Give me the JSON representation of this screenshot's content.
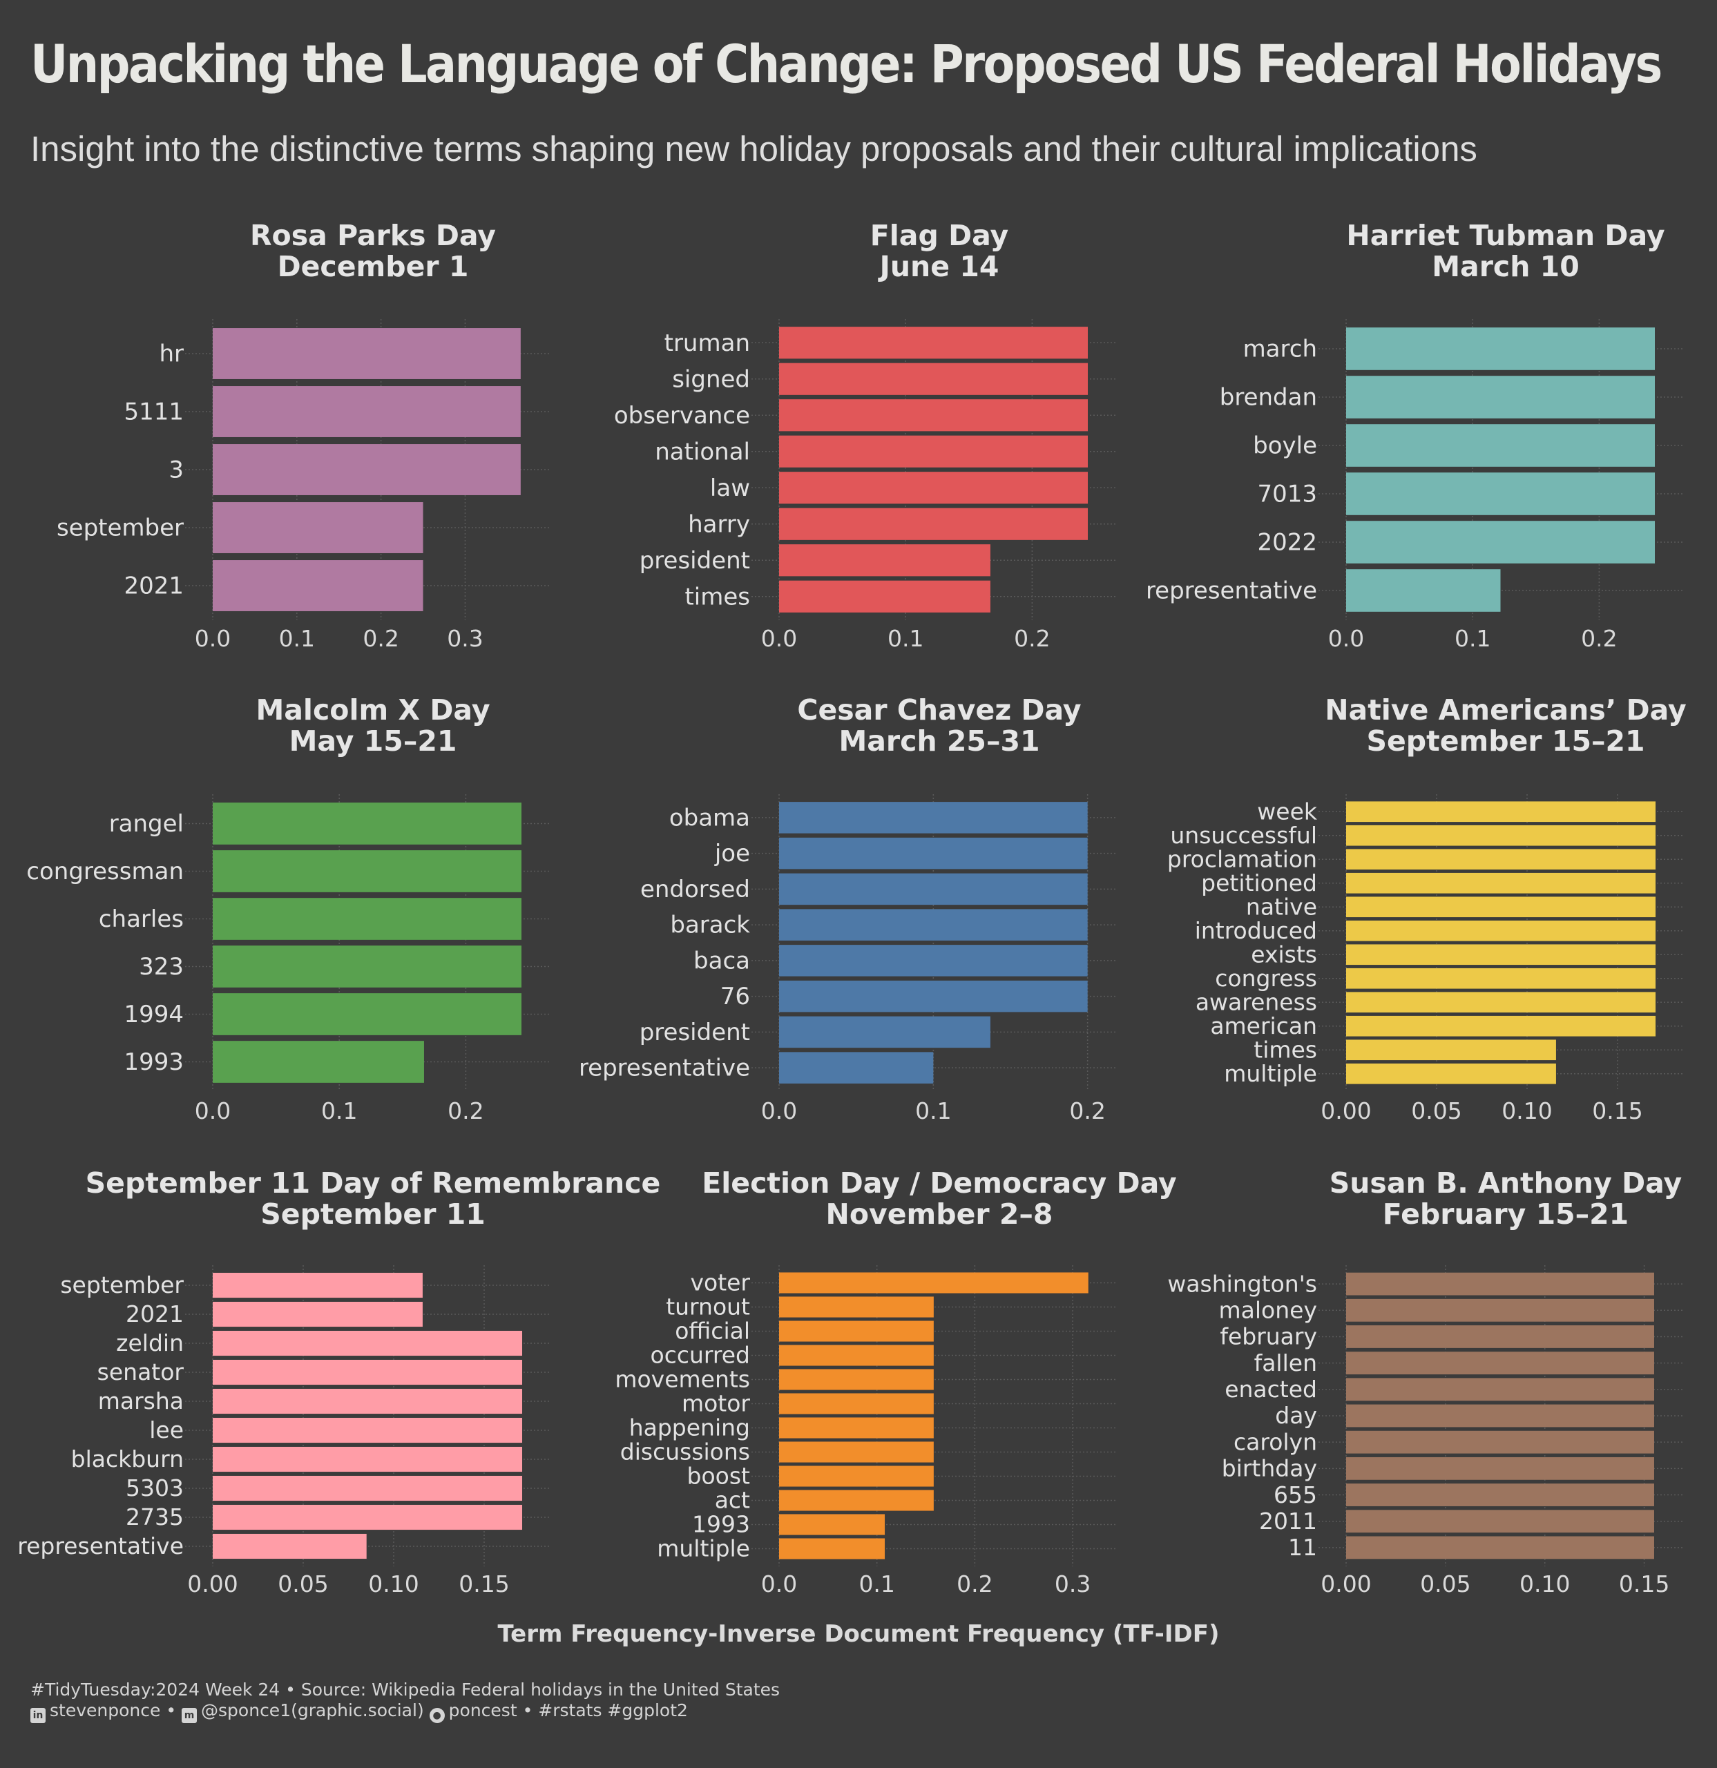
{
  "title": "Unpacking the Language of Change: Proposed US Federal Holidays",
  "subtitle": "Insight into the distinctive terms shaping new holiday proposals and their cultural implications",
  "x_axis_label": "Term Frequency-Inverse Document Frequency (TF-IDF)",
  "caption": {
    "line1": "#TidyTuesday:2024 Week 24 • Source: Wikipedia Federal holidays in the United States",
    "linkedin": "stevenponce",
    "mastodon": "@sponce1(graphic.social)",
    "github": "poncest",
    "tags": "#rstats #ggplot2",
    "sep": "•"
  },
  "icons": [
    "linkedin-icon",
    "mastodon-icon",
    "github-icon"
  ],
  "chart_data": [
    {
      "type": "bar",
      "orientation": "horizontal",
      "title": "Rosa Parks Day",
      "subtitle": "December 1",
      "color": "#b07aa1",
      "categories": [
        "hr",
        "5111",
        "3",
        "september",
        "2021"
      ],
      "values": [
        0.366,
        0.366,
        0.366,
        0.25,
        0.25
      ],
      "xlim": [
        0,
        0.385
      ],
      "xticks": [
        0,
        0.1,
        0.2,
        0.3
      ],
      "xtick_labels": [
        "0.0",
        "0.1",
        "0.2",
        "0.3"
      ]
    },
    {
      "type": "bar",
      "orientation": "horizontal",
      "title": "Flag Day",
      "subtitle": "June 14",
      "color": "#e15759",
      "categories": [
        "truman",
        "signed",
        "observance",
        "national",
        "law",
        "harry",
        "president",
        "times"
      ],
      "values": [
        0.244,
        0.244,
        0.244,
        0.244,
        0.244,
        0.244,
        0.167,
        0.167
      ],
      "xlim": [
        0,
        0.256
      ],
      "xticks": [
        0,
        0.1,
        0.2
      ],
      "xtick_labels": [
        "0.0",
        "0.1",
        "0.2"
      ]
    },
    {
      "type": "bar",
      "orientation": "horizontal",
      "title": "Harriet Tubman Day",
      "subtitle": "March 10",
      "color": "#76b7b2",
      "categories": [
        "march",
        "brendan",
        "boyle",
        "7013",
        "2022",
        "representative"
      ],
      "values": [
        0.244,
        0.244,
        0.244,
        0.244,
        0.244,
        0.122
      ],
      "xlim": [
        0,
        0.256
      ],
      "xticks": [
        0,
        0.1,
        0.2
      ],
      "xtick_labels": [
        "0.0",
        "0.1",
        "0.2"
      ]
    },
    {
      "type": "bar",
      "orientation": "horizontal",
      "title": "Malcolm X Day",
      "subtitle": "May 15–21",
      "color": "#59a14f",
      "categories": [
        "rangel",
        "congressman",
        "charles",
        "323",
        "1994",
        "1993"
      ],
      "values": [
        0.244,
        0.244,
        0.244,
        0.244,
        0.244,
        0.167
      ],
      "xlim": [
        0,
        0.256
      ],
      "xticks": [
        0,
        0.1,
        0.2
      ],
      "xtick_labels": [
        "0.0",
        "0.1",
        "0.2"
      ]
    },
    {
      "type": "bar",
      "orientation": "horizontal",
      "title": "Cesar Chavez Day",
      "subtitle": "March 25–31",
      "color": "#4e79a7",
      "categories": [
        "obama",
        "joe",
        "endorsed",
        "barack",
        "baca",
        "76",
        "president",
        "representative"
      ],
      "values": [
        0.2,
        0.2,
        0.2,
        0.2,
        0.2,
        0.2,
        0.137,
        0.1
      ],
      "xlim": [
        0,
        0.21
      ],
      "xticks": [
        0,
        0.1,
        0.2
      ],
      "xtick_labels": [
        "0.0",
        "0.1",
        "0.2"
      ]
    },
    {
      "type": "bar",
      "orientation": "horizontal",
      "title": "Native Americans’ Day",
      "subtitle": "September 15–21",
      "color": "#edc948",
      "categories": [
        "week",
        "unsuccessful",
        "proclamation",
        "petitioned",
        "native",
        "introduced",
        "exists",
        "congress",
        "awareness",
        "american",
        "times",
        "multiple"
      ],
      "values": [
        0.171,
        0.171,
        0.171,
        0.171,
        0.171,
        0.171,
        0.171,
        0.171,
        0.171,
        0.171,
        0.116,
        0.116
      ],
      "xlim": [
        0,
        0.179
      ],
      "xticks": [
        0,
        0.05,
        0.1,
        0.15
      ],
      "xtick_labels": [
        "0.00",
        "0.05",
        "0.10",
        "0.15"
      ]
    },
    {
      "type": "bar",
      "orientation": "horizontal",
      "title": "September 11 Day of Remembrance",
      "subtitle": "September 11",
      "color": "#ff9da7",
      "categories": [
        "september",
        "2021",
        "zeldin",
        "senator",
        "marsha",
        "lee",
        "blackburn",
        "5303",
        "2735",
        "representative"
      ],
      "values": [
        0.116,
        0.116,
        0.171,
        0.171,
        0.171,
        0.171,
        0.171,
        0.171,
        0.171,
        0.085
      ],
      "xlim": [
        0,
        0.179
      ],
      "xticks": [
        0,
        0.05,
        0.1,
        0.15
      ],
      "xtick_labels": [
        "0.00",
        "0.05",
        "0.10",
        "0.15"
      ]
    },
    {
      "type": "bar",
      "orientation": "horizontal",
      "title": "Election Day / Democracy Day",
      "subtitle": "November 2–8",
      "color": "#f28e2b",
      "categories": [
        "voter",
        "turnout",
        "official",
        "occurred",
        "movements",
        "motor",
        "happening",
        "discussions",
        "boost",
        "act",
        "1993",
        "multiple"
      ],
      "values": [
        0.316,
        0.158,
        0.158,
        0.158,
        0.158,
        0.158,
        0.158,
        0.158,
        0.158,
        0.158,
        0.108,
        0.108
      ],
      "xlim": [
        0,
        0.331
      ],
      "xticks": [
        0,
        0.1,
        0.2,
        0.3
      ],
      "xtick_labels": [
        "0.0",
        "0.1",
        "0.2",
        "0.3"
      ]
    },
    {
      "type": "bar",
      "orientation": "horizontal",
      "title": "Susan B. Anthony Day",
      "subtitle": "February 15–21",
      "color": "#9c755f",
      "categories": [
        "washington's",
        "maloney",
        "february",
        "fallen",
        "enacted",
        "day",
        "carolyn",
        "birthday",
        "655",
        "2011",
        "11"
      ],
      "values": [
        0.155,
        0.155,
        0.155,
        0.155,
        0.155,
        0.155,
        0.155,
        0.155,
        0.155,
        0.155,
        0.155
      ],
      "xlim": [
        0,
        0.163
      ],
      "xticks": [
        0,
        0.05,
        0.1,
        0.15
      ],
      "xtick_labels": [
        "0.00",
        "0.05",
        "0.10",
        "0.15"
      ]
    }
  ]
}
